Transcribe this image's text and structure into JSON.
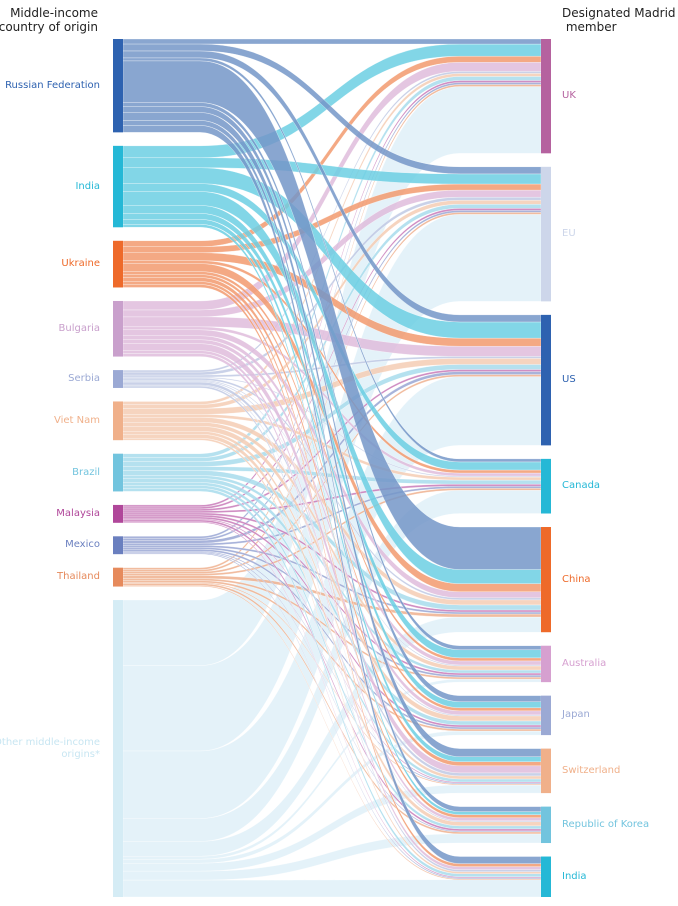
{
  "chart_data": {
    "type": "sankey",
    "left_title": "Middle-income\ncountry of origin",
    "right_title": "Designated Madrid\n member",
    "note": "values are relative estimates (no scale printed)",
    "sources": [
      {
        "name": "Russian Federation",
        "color": "#2e62b0",
        "link": "#7496c8"
      },
      {
        "name": "India",
        "color": "#25b8d6",
        "link": "#6ccfe3"
      },
      {
        "name": "Ukraine",
        "color": "#ee6a2a",
        "link": "#f29a6e"
      },
      {
        "name": "Bulgaria",
        "color": "#c9a0cc",
        "link": "#dfbcdc"
      },
      {
        "name": "Serbia",
        "color": "#9ba9d4",
        "link": "#c0c9e4"
      },
      {
        "name": "Viet Nam",
        "color": "#f0b08a",
        "link": "#f5cdb4"
      },
      {
        "name": "Brazil",
        "color": "#72c4de",
        "link": "#a8dcec"
      },
      {
        "name": "Malaysia",
        "color": "#b0479a",
        "link": "#c87ab8"
      },
      {
        "name": "Mexico",
        "color": "#6a7fbf",
        "link": "#99a6d4"
      },
      {
        "name": "Thailand",
        "color": "#e68a5c",
        "link": "#efb08e"
      },
      {
        "name": "Other middle-income\norigins*",
        "color": "#d5ecf5",
        "link": "#e1f1f8"
      }
    ],
    "targets": [
      {
        "name": "UK",
        "color": "#b5629f"
      },
      {
        "name": "EU",
        "color": "#cdd6ea"
      },
      {
        "name": "US",
        "color": "#2e62b0"
      },
      {
        "name": "Canada",
        "color": "#25b8d6"
      },
      {
        "name": "China",
        "color": "#ee6a2a"
      },
      {
        "name": "Australia",
        "color": "#d6a0d0"
      },
      {
        "name": "Japan",
        "color": "#9ba9d4"
      },
      {
        "name": "Switzerland",
        "color": "#f0b08a"
      },
      {
        "name": "Republic of Korea",
        "color": "#72c4de"
      },
      {
        "name": "India",
        "color": "#25b8d6"
      }
    ],
    "flows": [
      [
        5,
        7,
        7,
        3,
        42,
        4,
        6,
        8,
        5,
        7
      ],
      [
        12,
        10,
        16,
        8,
        14,
        8,
        6,
        5,
        3,
        0
      ],
      [
        6,
        6,
        8,
        3,
        8,
        3,
        3,
        4,
        3,
        3
      ],
      [
        9,
        7,
        10,
        3,
        6,
        4,
        4,
        7,
        3,
        3
      ],
      [
        2,
        3,
        2,
        1,
        2,
        1,
        1,
        3,
        1,
        2
      ],
      [
        3,
        4,
        6,
        3,
        5,
        4,
        5,
        3,
        4,
        2
      ],
      [
        4,
        4,
        5,
        4,
        5,
        3,
        4,
        3,
        3,
        3
      ],
      [
        2,
        2,
        2,
        2,
        2,
        2,
        2,
        1,
        2,
        1
      ],
      [
        2,
        2,
        3,
        2,
        2,
        2,
        2,
        1,
        1,
        1
      ],
      [
        2,
        2,
        2,
        2,
        3,
        2,
        2,
        1,
        2,
        1
      ],
      [
        66,
        86,
        68,
        23,
        15,
        3,
        4,
        8,
        9,
        17
      ]
    ]
  }
}
